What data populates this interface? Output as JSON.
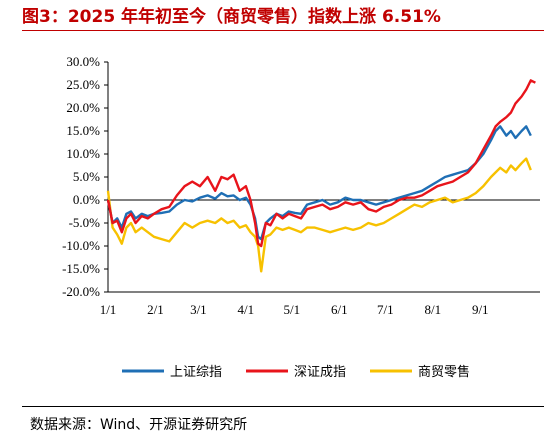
{
  "title": "图3：2025 年年初至今（商贸零售）指数上涨 6.51%",
  "source": "数据来源：Wind、开源证券研究所",
  "chart_data": {
    "type": "line",
    "x_ticks": [
      "1/1",
      "2/1",
      "3/1",
      "4/1",
      "5/1",
      "6/1",
      "7/1",
      "8/1",
      "9/1"
    ],
    "y_ticks": [
      "30.0%",
      "25.0%",
      "20.0%",
      "15.0%",
      "10.0%",
      "5.0%",
      "0.0%",
      "-5.0%",
      "-10.0%",
      "-15.0%",
      "-20.0%"
    ],
    "ylim": [
      -20,
      30
    ],
    "xlim_days": [
      0,
      250
    ],
    "legend_position": "bottom",
    "series": [
      {
        "name": "上证综指",
        "color": "#1f6fb5",
        "points": [
          [
            0,
            0
          ],
          [
            3,
            -5
          ],
          [
            6,
            -4
          ],
          [
            9,
            -6
          ],
          [
            12,
            -3
          ],
          [
            15,
            -2.5
          ],
          [
            18,
            -4
          ],
          [
            22,
            -3
          ],
          [
            26,
            -3.5
          ],
          [
            30,
            -3
          ],
          [
            35,
            -2.8
          ],
          [
            40,
            -2.5
          ],
          [
            45,
            -1
          ],
          [
            50,
            0
          ],
          [
            55,
            -0.3
          ],
          [
            60,
            0.5
          ],
          [
            65,
            1
          ],
          [
            70,
            0.3
          ],
          [
            74,
            1.5
          ],
          [
            78,
            0.8
          ],
          [
            82,
            1
          ],
          [
            86,
            0
          ],
          [
            90,
            0.5
          ],
          [
            93,
            -1
          ],
          [
            96,
            -4
          ],
          [
            98,
            -8
          ],
          [
            100,
            -8.5
          ],
          [
            103,
            -5
          ],
          [
            106,
            -4
          ],
          [
            110,
            -3
          ],
          [
            114,
            -3.5
          ],
          [
            118,
            -2.5
          ],
          [
            122,
            -2.8
          ],
          [
            126,
            -3
          ],
          [
            130,
            -1
          ],
          [
            135,
            -0.5
          ],
          [
            140,
            0
          ],
          [
            145,
            -1
          ],
          [
            150,
            -0.5
          ],
          [
            155,
            0.5
          ],
          [
            160,
            0
          ],
          [
            165,
            0
          ],
          [
            170,
            -0.5
          ],
          [
            175,
            -1
          ],
          [
            180,
            -0.5
          ],
          [
            185,
            0
          ],
          [
            190,
            0.5
          ],
          [
            195,
            1
          ],
          [
            200,
            1.5
          ],
          [
            205,
            2
          ],
          [
            210,
            3
          ],
          [
            215,
            4
          ],
          [
            220,
            5
          ],
          [
            225,
            5.5
          ],
          [
            230,
            6
          ],
          [
            235,
            6.5
          ],
          [
            240,
            8
          ],
          [
            245,
            10
          ],
          [
            250,
            13
          ],
          [
            253,
            15
          ],
          [
            256,
            16
          ],
          [
            260,
            14
          ],
          [
            263,
            15
          ],
          [
            266,
            13.5
          ],
          [
            270,
            15
          ],
          [
            273,
            16
          ],
          [
            276,
            14
          ]
        ]
      },
      {
        "name": "深证成指",
        "color": "#e8141b",
        "points": [
          [
            0,
            0
          ],
          [
            3,
            -5
          ],
          [
            6,
            -4.5
          ],
          [
            9,
            -7
          ],
          [
            12,
            -4
          ],
          [
            15,
            -3
          ],
          [
            18,
            -5
          ],
          [
            22,
            -3.5
          ],
          [
            26,
            -4
          ],
          [
            30,
            -3
          ],
          [
            35,
            -2
          ],
          [
            40,
            -1.5
          ],
          [
            45,
            1
          ],
          [
            50,
            3
          ],
          [
            55,
            4
          ],
          [
            60,
            3
          ],
          [
            65,
            5
          ],
          [
            70,
            2
          ],
          [
            74,
            5
          ],
          [
            78,
            4.5
          ],
          [
            82,
            5.5
          ],
          [
            86,
            2
          ],
          [
            90,
            3
          ],
          [
            93,
            0
          ],
          [
            96,
            -5
          ],
          [
            98,
            -9.5
          ],
          [
            100,
            -10
          ],
          [
            103,
            -5
          ],
          [
            106,
            -5.5
          ],
          [
            110,
            -3
          ],
          [
            114,
            -4
          ],
          [
            118,
            -3
          ],
          [
            122,
            -3.5
          ],
          [
            126,
            -4
          ],
          [
            130,
            -2
          ],
          [
            135,
            -1.5
          ],
          [
            140,
            -1
          ],
          [
            145,
            -2
          ],
          [
            150,
            -1.5
          ],
          [
            155,
            -0.5
          ],
          [
            160,
            -1
          ],
          [
            165,
            -0.5
          ],
          [
            170,
            -2
          ],
          [
            175,
            -2.5
          ],
          [
            180,
            -1.5
          ],
          [
            185,
            -1
          ],
          [
            190,
            0
          ],
          [
            195,
            0.5
          ],
          [
            200,
            0.5
          ],
          [
            205,
            1
          ],
          [
            210,
            2
          ],
          [
            215,
            3
          ],
          [
            220,
            3.5
          ],
          [
            225,
            4
          ],
          [
            230,
            5
          ],
          [
            235,
            6
          ],
          [
            240,
            8
          ],
          [
            245,
            11
          ],
          [
            250,
            14
          ],
          [
            253,
            16
          ],
          [
            256,
            17
          ],
          [
            260,
            18
          ],
          [
            263,
            19
          ],
          [
            266,
            21
          ],
          [
            270,
            22.5
          ],
          [
            273,
            24
          ],
          [
            276,
            26
          ],
          [
            279,
            25.5
          ]
        ]
      },
      {
        "name": "商贸零售",
        "color": "#f7c100",
        "points": [
          [
            0,
            2
          ],
          [
            3,
            -6
          ],
          [
            6,
            -7.5
          ],
          [
            9,
            -9.5
          ],
          [
            12,
            -6
          ],
          [
            15,
            -5
          ],
          [
            18,
            -7
          ],
          [
            22,
            -6
          ],
          [
            26,
            -7
          ],
          [
            30,
            -8
          ],
          [
            35,
            -8.5
          ],
          [
            40,
            -9
          ],
          [
            45,
            -7
          ],
          [
            50,
            -5
          ],
          [
            55,
            -6
          ],
          [
            60,
            -5
          ],
          [
            65,
            -4.5
          ],
          [
            70,
            -5
          ],
          [
            74,
            -4
          ],
          [
            78,
            -5
          ],
          [
            82,
            -4.5
          ],
          [
            86,
            -6
          ],
          [
            90,
            -5.5
          ],
          [
            93,
            -7
          ],
          [
            96,
            -8
          ],
          [
            98,
            -10
          ],
          [
            100,
            -15.5
          ],
          [
            103,
            -8
          ],
          [
            106,
            -7.5
          ],
          [
            110,
            -6
          ],
          [
            114,
            -6.5
          ],
          [
            118,
            -6
          ],
          [
            122,
            -6.5
          ],
          [
            126,
            -7
          ],
          [
            130,
            -6
          ],
          [
            135,
            -6
          ],
          [
            140,
            -6.5
          ],
          [
            145,
            -7
          ],
          [
            150,
            -6.5
          ],
          [
            155,
            -6
          ],
          [
            160,
            -6.5
          ],
          [
            165,
            -6
          ],
          [
            170,
            -5
          ],
          [
            175,
            -5.5
          ],
          [
            180,
            -5
          ],
          [
            185,
            -4
          ],
          [
            190,
            -3
          ],
          [
            195,
            -2
          ],
          [
            200,
            -1
          ],
          [
            205,
            -1.5
          ],
          [
            210,
            -0.5
          ],
          [
            215,
            0
          ],
          [
            220,
            0.5
          ],
          [
            225,
            -0.5
          ],
          [
            230,
            0
          ],
          [
            235,
            0.5
          ],
          [
            240,
            1.5
          ],
          [
            245,
            3
          ],
          [
            250,
            5
          ],
          [
            253,
            6
          ],
          [
            256,
            7
          ],
          [
            260,
            6
          ],
          [
            263,
            7.5
          ],
          [
            266,
            6.5
          ],
          [
            270,
            8
          ],
          [
            273,
            9
          ],
          [
            276,
            6.5
          ]
        ]
      }
    ]
  }
}
